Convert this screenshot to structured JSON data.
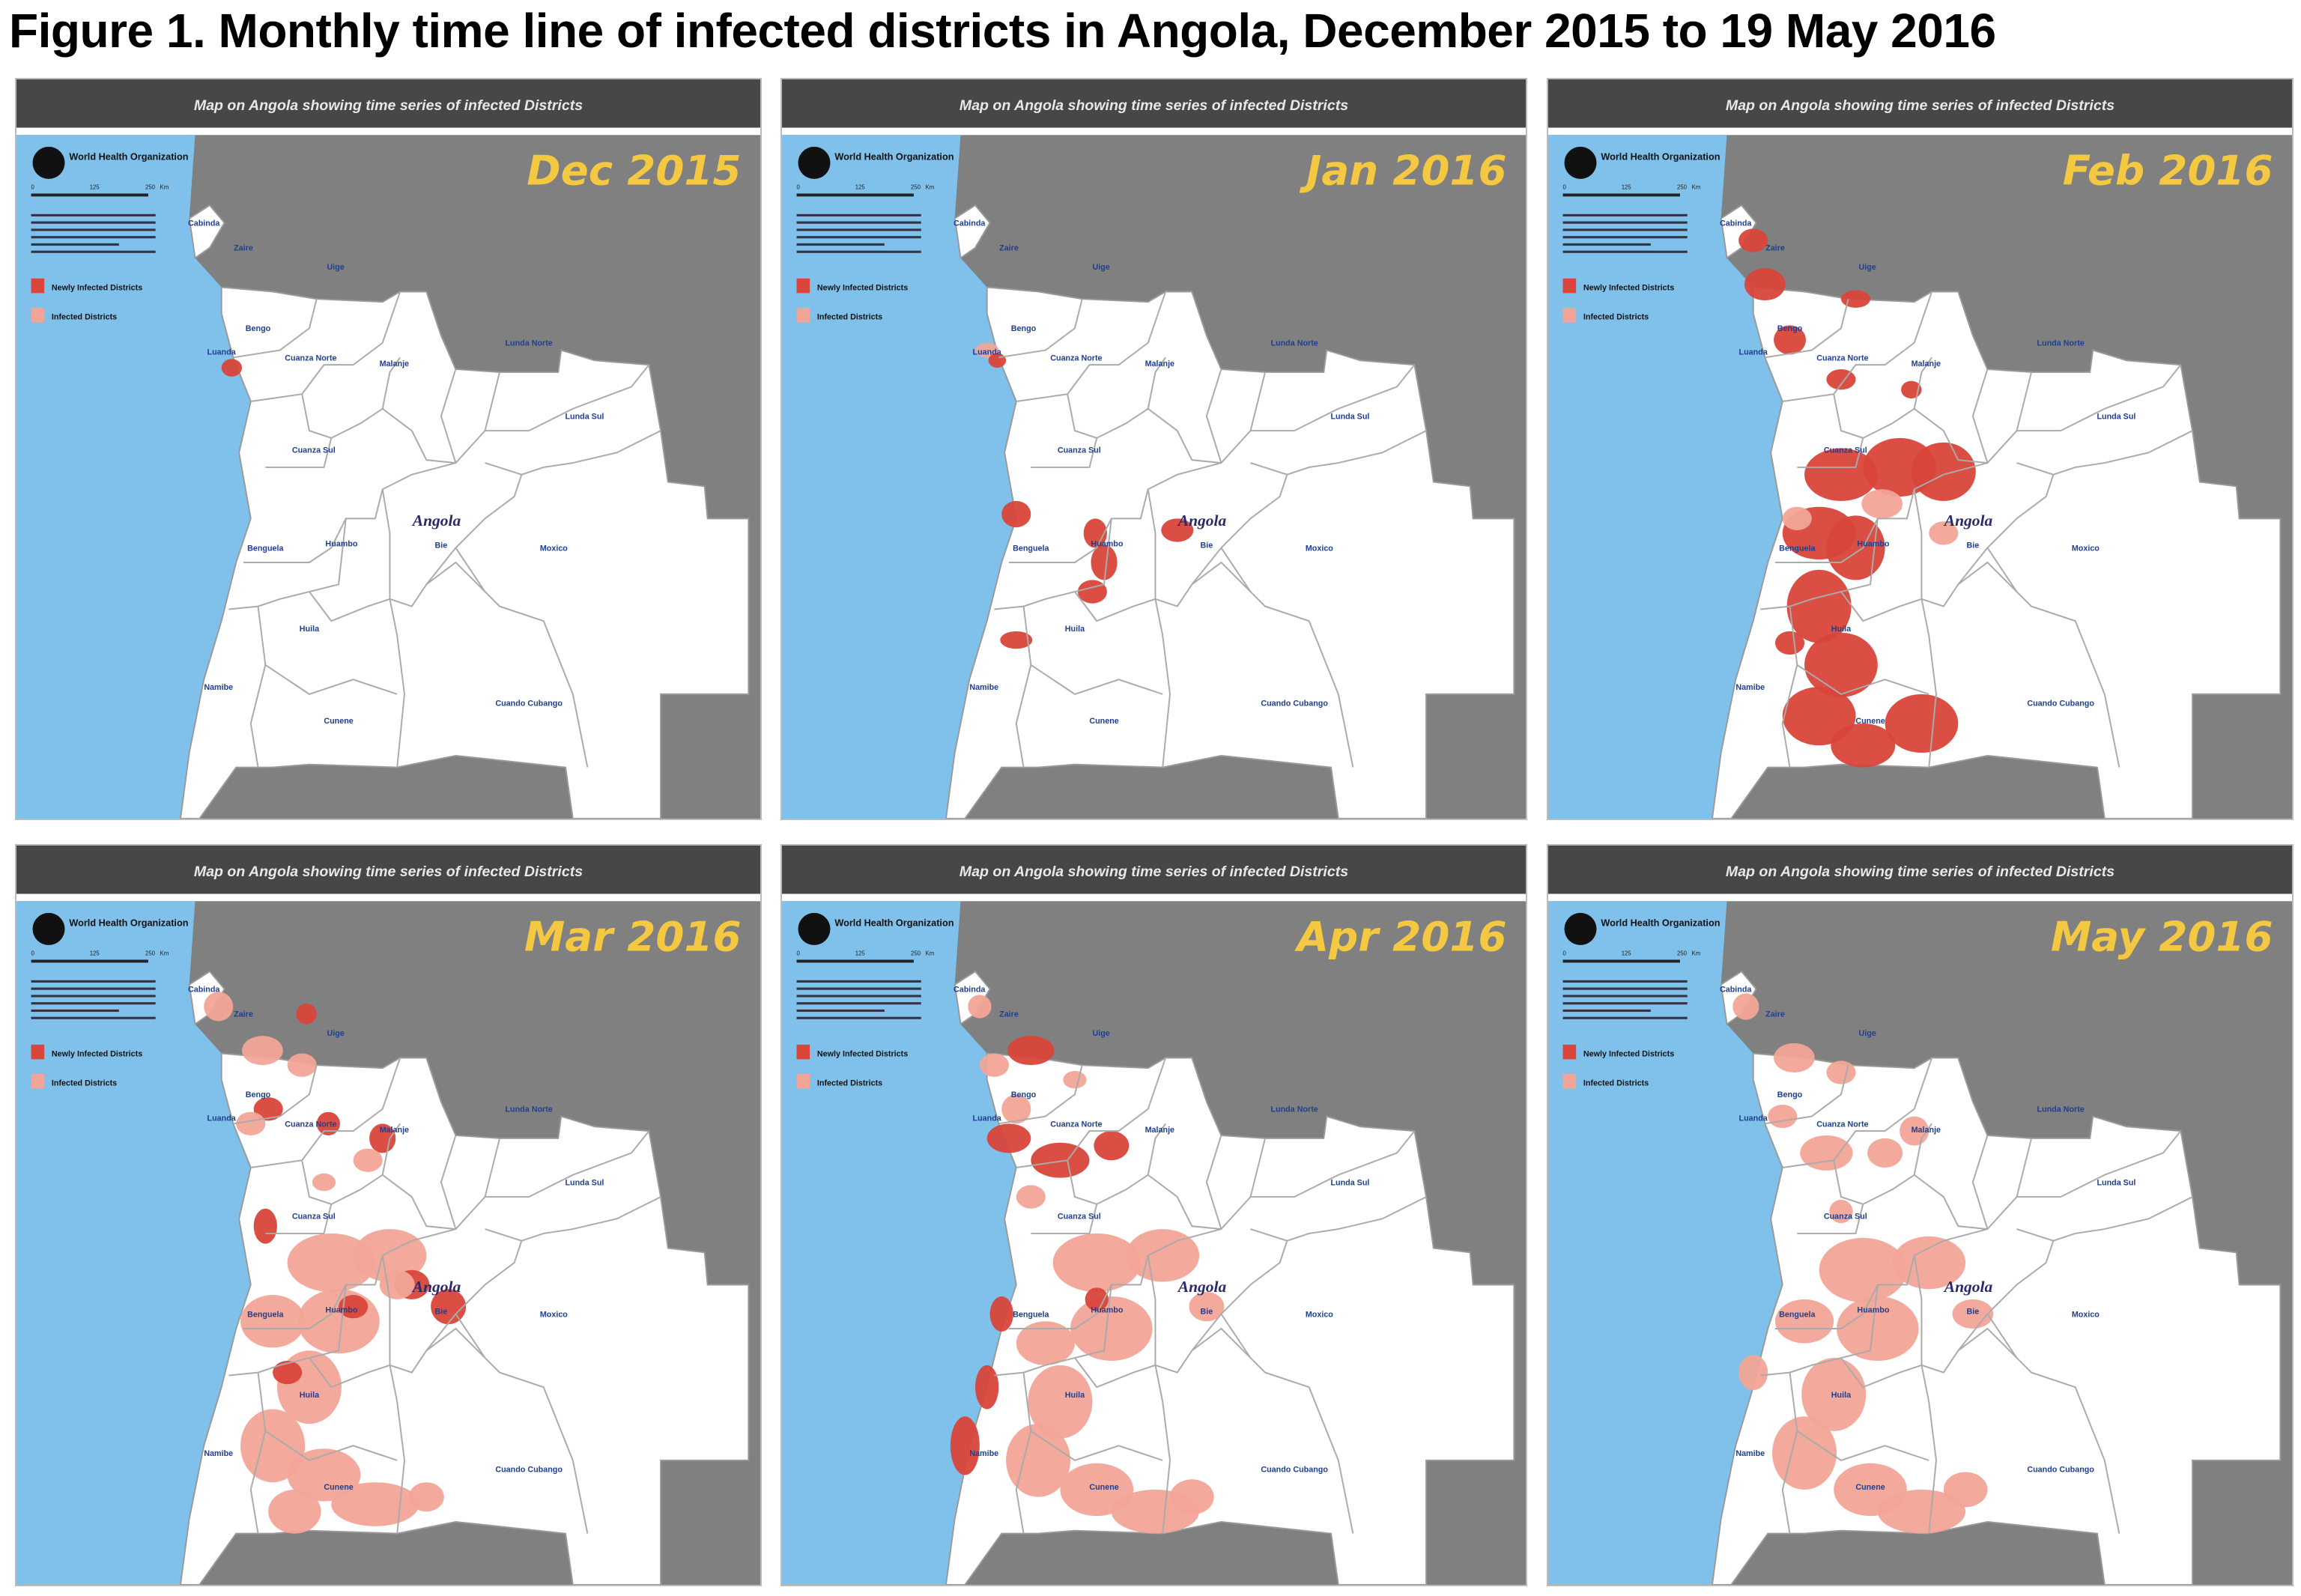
{
  "figure": {
    "title": "Figure 1. Monthly time line of infected districts in Angola, December 2015 to 19 May 2016"
  },
  "map_header": "Map on Angola showing time series of infected Districts",
  "logo_text": "World Health Organization",
  "legend": {
    "newly": "Newly Infected Districts",
    "infected": "Infected Districts"
  },
  "scale_labels": [
    "0",
    "125",
    "250",
    "Km"
  ],
  "country_label": "Angola",
  "provinces": [
    "Cabinda",
    "Zaire",
    "Uige",
    "Bengo",
    "Luanda",
    "Cuanza Norte",
    "Malanje",
    "Lunda Norte",
    "Lunda Sul",
    "Cuanza Sul",
    "Benguela",
    "Huambo",
    "Bie",
    "Moxico",
    "Namibe",
    "Huila",
    "Cunene",
    "Cuando Cubango"
  ],
  "panels": [
    {
      "month": "Dec 2015"
    },
    {
      "month": "Jan 2016"
    },
    {
      "month": "Feb 2016"
    },
    {
      "month": "Mar 2016"
    },
    {
      "month": "Apr 2016"
    },
    {
      "month": "May 2016"
    }
  ],
  "colors": {
    "newly_infected": "#d9453a",
    "infected": "#f2a597",
    "sea": "#7fc1ea",
    "neighbor_land": "#808080",
    "header_bar": "#474747",
    "month_label": "#f5c842",
    "province_label": "#1f3f8f"
  }
}
